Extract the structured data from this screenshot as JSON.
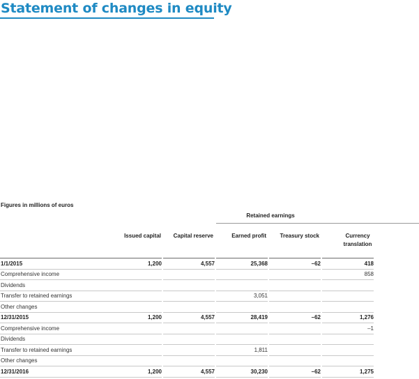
{
  "title": "Statement of changes in equity",
  "caption": "Figures in millions of euros",
  "group_header": "Retained earnings",
  "columns": {
    "issued_capital": "Issued capital",
    "capital_reserve": "Capital reserve",
    "earned_profit": "Earned profit",
    "treasury_stock": "Treasury stock",
    "currency_translation_1": "Currency",
    "currency_translation_2": "translation"
  },
  "rows": [
    {
      "label": "1/1/2015",
      "issued_capital": "1,200",
      "capital_reserve": "4,557",
      "earned_profit": "25,368",
      "treasury_stock": "–62",
      "currency_translation": "418",
      "bold": true
    },
    {
      "label": "Comprehensive income",
      "issued_capital": "",
      "capital_reserve": "",
      "earned_profit": "",
      "treasury_stock": "",
      "currency_translation": "858",
      "bold": false
    },
    {
      "label": "Dividends",
      "issued_capital": "",
      "capital_reserve": "",
      "earned_profit": "",
      "treasury_stock": "",
      "currency_translation": "",
      "bold": false
    },
    {
      "label": "Transfer to retained earnings",
      "issued_capital": "",
      "capital_reserve": "",
      "earned_profit": "3,051",
      "treasury_stock": "",
      "currency_translation": "",
      "bold": false
    },
    {
      "label": "Other changes",
      "issued_capital": "",
      "capital_reserve": "",
      "earned_profit": "",
      "treasury_stock": "",
      "currency_translation": "",
      "bold": false
    },
    {
      "label": "12/31/2015",
      "issued_capital": "1,200",
      "capital_reserve": "4,557",
      "earned_profit": "28,419",
      "treasury_stock": "–62",
      "currency_translation": "1,276",
      "bold": true
    },
    {
      "label": "Comprehensive income",
      "issued_capital": "",
      "capital_reserve": "",
      "earned_profit": "",
      "treasury_stock": "",
      "currency_translation": "–1",
      "bold": false
    },
    {
      "label": "Dividends",
      "issued_capital": "",
      "capital_reserve": "",
      "earned_profit": "",
      "treasury_stock": "",
      "currency_translation": "",
      "bold": false
    },
    {
      "label": "Transfer to retained earnings",
      "issued_capital": "",
      "capital_reserve": "",
      "earned_profit": "1,811",
      "treasury_stock": "",
      "currency_translation": "",
      "bold": false
    },
    {
      "label": "Other changes",
      "issued_capital": "",
      "capital_reserve": "",
      "earned_profit": "",
      "treasury_stock": "",
      "currency_translation": "",
      "bold": false
    },
    {
      "label": "12/31/2016",
      "issued_capital": "1,200",
      "capital_reserve": "4,557",
      "earned_profit": "30,230",
      "treasury_stock": "–62",
      "currency_translation": "1,275",
      "bold": true
    }
  ]
}
